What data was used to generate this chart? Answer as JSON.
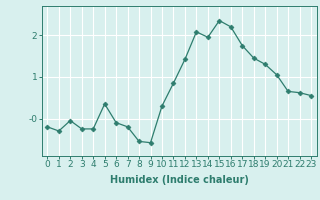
{
  "x": [
    0,
    1,
    2,
    3,
    4,
    5,
    6,
    7,
    8,
    9,
    10,
    11,
    12,
    13,
    14,
    15,
    16,
    17,
    18,
    19,
    20,
    21,
    22,
    23
  ],
  "y": [
    -0.2,
    -0.3,
    -0.05,
    -0.25,
    -0.25,
    0.35,
    -0.1,
    -0.2,
    -0.55,
    -0.58,
    0.3,
    0.85,
    1.42,
    2.08,
    1.95,
    2.35,
    2.2,
    1.75,
    1.45,
    1.3,
    1.05,
    0.65,
    0.62,
    0.55
  ],
  "line_color": "#2e7d6e",
  "marker": "D",
  "marker_size": 2.5,
  "bg_color": "#d8f0ee",
  "grid_color": "#ffffff",
  "xlabel": "Humidex (Indice chaleur)",
  "xlim": [
    -0.5,
    23.5
  ],
  "ylim": [
    -0.9,
    2.7
  ],
  "ytick_values": [
    0.0,
    1.0,
    2.0
  ],
  "ytick_labels": [
    "-0",
    "1",
    "2"
  ],
  "xticks": [
    0,
    1,
    2,
    3,
    4,
    5,
    6,
    7,
    8,
    9,
    10,
    11,
    12,
    13,
    14,
    15,
    16,
    17,
    18,
    19,
    20,
    21,
    22,
    23
  ],
  "label_fontsize": 7,
  "tick_fontsize": 6.5
}
